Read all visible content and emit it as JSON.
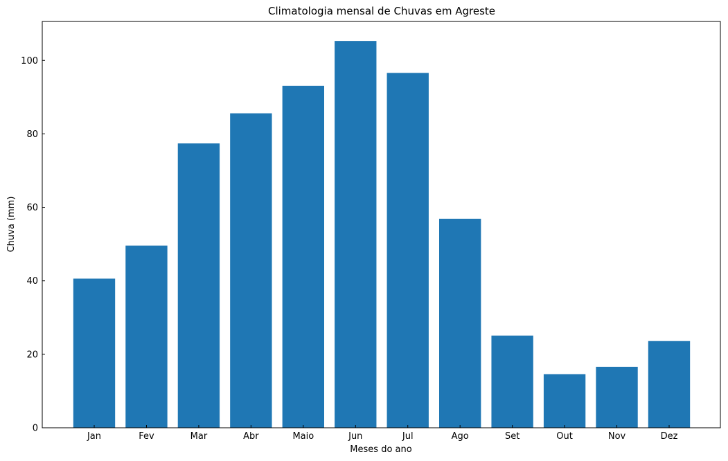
{
  "chart_data": {
    "type": "bar",
    "title": "Climatologia mensal de Chuvas em Agreste",
    "xlabel": "Meses do ano",
    "ylabel": "Chuva (mm)",
    "categories": [
      "Jan",
      "Fev",
      "Mar",
      "Abr",
      "Maio",
      "Jun",
      "Jul",
      "Ago",
      "Set",
      "Out",
      "Nov",
      "Dez"
    ],
    "values": [
      40.6,
      49.6,
      77.4,
      85.6,
      93.1,
      105.3,
      96.6,
      56.9,
      25.1,
      14.6,
      16.6,
      23.6
    ],
    "ylim": [
      0,
      110.6
    ],
    "yticks": [
      0,
      20,
      40,
      60,
      80,
      100
    ],
    "grid": false,
    "bar_color": "#1f77b4"
  }
}
